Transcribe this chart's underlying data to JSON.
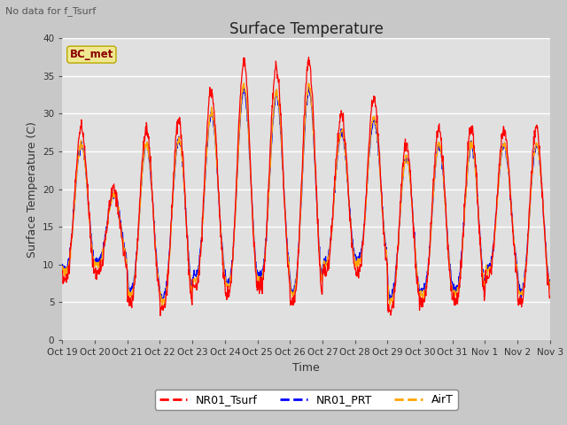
{
  "title": "Surface Temperature",
  "xlabel": "Time",
  "ylabel": "Surface Temperature (C)",
  "note": "No data for f_Tsurf",
  "bc_label": "BC_met",
  "ylim": [
    0,
    40
  ],
  "legend_labels": [
    "NR01_Tsurf",
    "NR01_PRT",
    "AirT"
  ],
  "line_colors": [
    "red",
    "blue",
    "orange"
  ],
  "fig_facecolor": "#c8c8c8",
  "ax_facecolor": "#e0e0e0",
  "grid_color": "#ffffff",
  "tick_labels": [
    "Oct 19",
    "Oct 20",
    "Oct 21",
    "Oct 22",
    "Oct 23",
    "Oct 24",
    "Oct 25",
    "Oct 26",
    "Oct 27",
    "Oct 28",
    "Oct 29",
    "Oct 30",
    "Oct 31",
    "Nov 1",
    "Nov 2",
    "Nov 3"
  ],
  "day_peaks_red": [
    28,
    20,
    28,
    29,
    33,
    37,
    36,
    37,
    30,
    32,
    26,
    28,
    28,
    28,
    28
  ],
  "day_mins_red": [
    8,
    9,
    5,
    4,
    7,
    6,
    7,
    5,
    9,
    9,
    4,
    5,
    5,
    8,
    5
  ]
}
